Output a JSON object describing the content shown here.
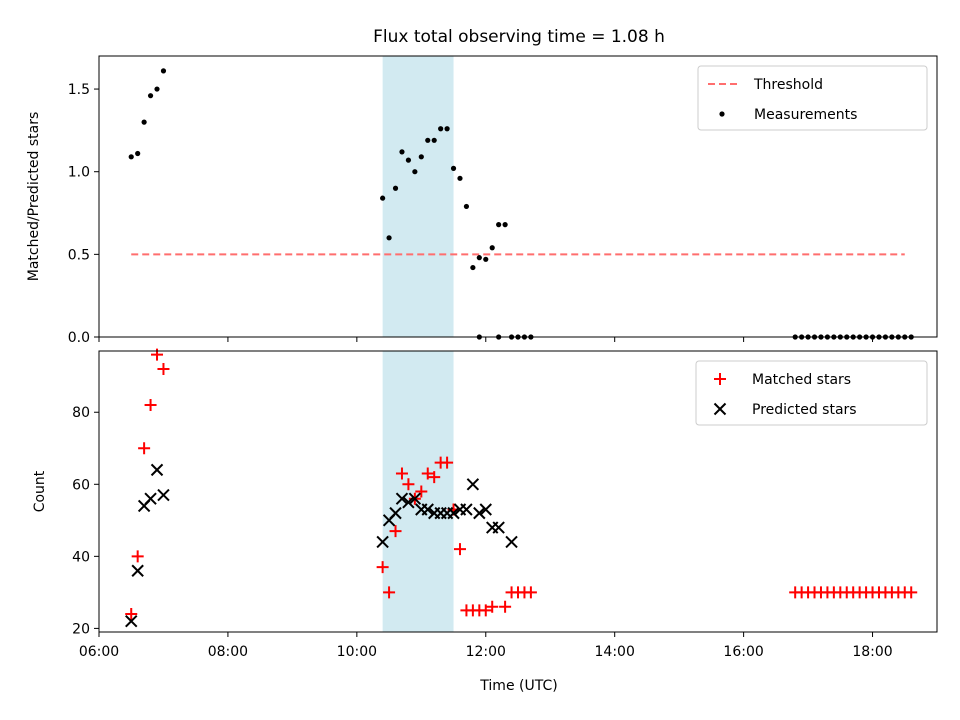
{
  "title": "Flux total observing time = 1.08 h",
  "xlabel": "Time (UTC)",
  "chart_data": [
    {
      "type": "scatter",
      "ylabel": "Matched/Predicted stars",
      "xlim": [
        "06:00",
        "19:00"
      ],
      "ylim": [
        0,
        1.7
      ],
      "yticks": [
        0.0,
        0.5,
        1.0,
        1.5
      ],
      "ytick_labels": [
        "0.0",
        "0.5",
        "1.0",
        "1.5"
      ],
      "shaded_interval": {
        "start": "10:24",
        "end": "11:30",
        "color": "#add8e6"
      },
      "legend": {
        "position": "top-right",
        "entries": [
          {
            "label": "Threshold",
            "style": "dashed-line",
            "color": "#ff6e6e"
          },
          {
            "label": "Measurements",
            "style": "dot",
            "color": "#000000"
          }
        ]
      },
      "series": [
        {
          "name": "Threshold",
          "kind": "line",
          "color": "#ff6e6e",
          "dashed": true,
          "x": [
            "06:30",
            "18:30"
          ],
          "y": [
            0.5,
            0.5
          ]
        },
        {
          "name": "Measurements",
          "kind": "dot",
          "color": "#000000",
          "x": [
            "06:30",
            "06:36",
            "06:42",
            "06:48",
            "06:54",
            "07:00",
            "10:24",
            "10:30",
            "10:36",
            "10:42",
            "10:48",
            "10:54",
            "11:00",
            "11:06",
            "11:12",
            "11:18",
            "11:24",
            "11:30",
            "11:36",
            "11:42",
            "11:48",
            "11:54",
            "12:00",
            "12:06",
            "12:12",
            "12:18",
            "11:54",
            "12:12",
            "12:24",
            "12:30",
            "12:36",
            "12:42",
            "16:48",
            "16:54",
            "17:00",
            "17:06",
            "17:12",
            "17:18",
            "17:24",
            "17:30",
            "17:36",
            "17:42",
            "17:48",
            "17:54",
            "18:00",
            "18:06",
            "18:12",
            "18:18",
            "18:24",
            "18:30",
            "18:36"
          ],
          "y": [
            1.09,
            1.11,
            1.3,
            1.46,
            1.5,
            1.61,
            0.84,
            0.6,
            0.9,
            1.12,
            1.07,
            1.0,
            1.09,
            1.19,
            1.19,
            1.26,
            1.26,
            1.02,
            0.96,
            0.79,
            0.42,
            0.48,
            0.47,
            0.54,
            0.68,
            0.68,
            0.0,
            0.0,
            0.0,
            0.0,
            0.0,
            0.0,
            0.0,
            0.0,
            0.0,
            0.0,
            0.0,
            0.0,
            0.0,
            0.0,
            0.0,
            0.0,
            0.0,
            0.0,
            0.0,
            0.0,
            0.0,
            0.0,
            0.0,
            0.0,
            0.0
          ]
        }
      ]
    },
    {
      "type": "scatter",
      "ylabel": "Count",
      "xlim": [
        "06:00",
        "19:00"
      ],
      "ylim": [
        19,
        97
      ],
      "yticks": [
        20,
        40,
        60,
        80
      ],
      "ytick_labels": [
        "20",
        "40",
        "60",
        "80"
      ],
      "xticks": [
        "06:00",
        "08:00",
        "10:00",
        "12:00",
        "14:00",
        "16:00",
        "18:00"
      ],
      "xtick_labels": [
        "06:00",
        "08:00",
        "10:00",
        "12:00",
        "14:00",
        "16:00",
        "18:00"
      ],
      "shaded_interval": {
        "start": "10:24",
        "end": "11:30",
        "color": "#add8e6"
      },
      "legend": {
        "position": "top-right",
        "entries": [
          {
            "label": "Matched stars",
            "style": "plus",
            "color": "#ff0000"
          },
          {
            "label": "Predicted stars",
            "style": "x",
            "color": "#000000"
          }
        ]
      },
      "series": [
        {
          "name": "Matched stars",
          "kind": "plus",
          "color": "#ff0000",
          "x": [
            "06:30",
            "06:36",
            "06:42",
            "06:48",
            "06:54",
            "07:00",
            "10:24",
            "10:30",
            "10:36",
            "10:42",
            "10:48",
            "10:54",
            "11:00",
            "11:06",
            "11:12",
            "11:18",
            "11:24",
            "11:30",
            "11:36",
            "11:42",
            "11:48",
            "11:54",
            "12:00",
            "12:06",
            "12:18",
            "12:24",
            "12:30",
            "12:36",
            "12:42",
            "16:48",
            "16:54",
            "17:00",
            "17:06",
            "17:12",
            "17:18",
            "17:24",
            "17:30",
            "17:36",
            "17:42",
            "17:48",
            "17:54",
            "18:00",
            "18:06",
            "18:12",
            "18:18",
            "18:24",
            "18:30",
            "18:36"
          ],
          "y": [
            24,
            40,
            70,
            82,
            96,
            92,
            37,
            30,
            47,
            63,
            60,
            56,
            58,
            63,
            62,
            66,
            66,
            53,
            42,
            25,
            25,
            25,
            25,
            26,
            26,
            30,
            30,
            30,
            30,
            30,
            30,
            30,
            30,
            30,
            30,
            30,
            30,
            30,
            30,
            30,
            30,
            30,
            30,
            30,
            30,
            30,
            30,
            30
          ]
        },
        {
          "name": "Predicted stars",
          "kind": "x",
          "color": "#000000",
          "x": [
            "06:30",
            "06:36",
            "06:42",
            "06:48",
            "06:54",
            "07:00",
            "10:24",
            "10:30",
            "10:36",
            "10:42",
            "10:48",
            "10:54",
            "11:00",
            "11:06",
            "11:12",
            "11:18",
            "11:24",
            "11:30",
            "11:36",
            "11:42",
            "11:48",
            "11:54",
            "12:00",
            "12:06",
            "12:12",
            "12:24"
          ],
          "y": [
            22,
            36,
            54,
            56,
            64,
            57,
            44,
            50,
            52,
            56,
            55,
            56,
            53,
            53,
            52,
            52,
            52,
            52,
            53,
            53,
            60,
            52,
            53,
            48,
            48,
            44
          ]
        }
      ]
    }
  ]
}
